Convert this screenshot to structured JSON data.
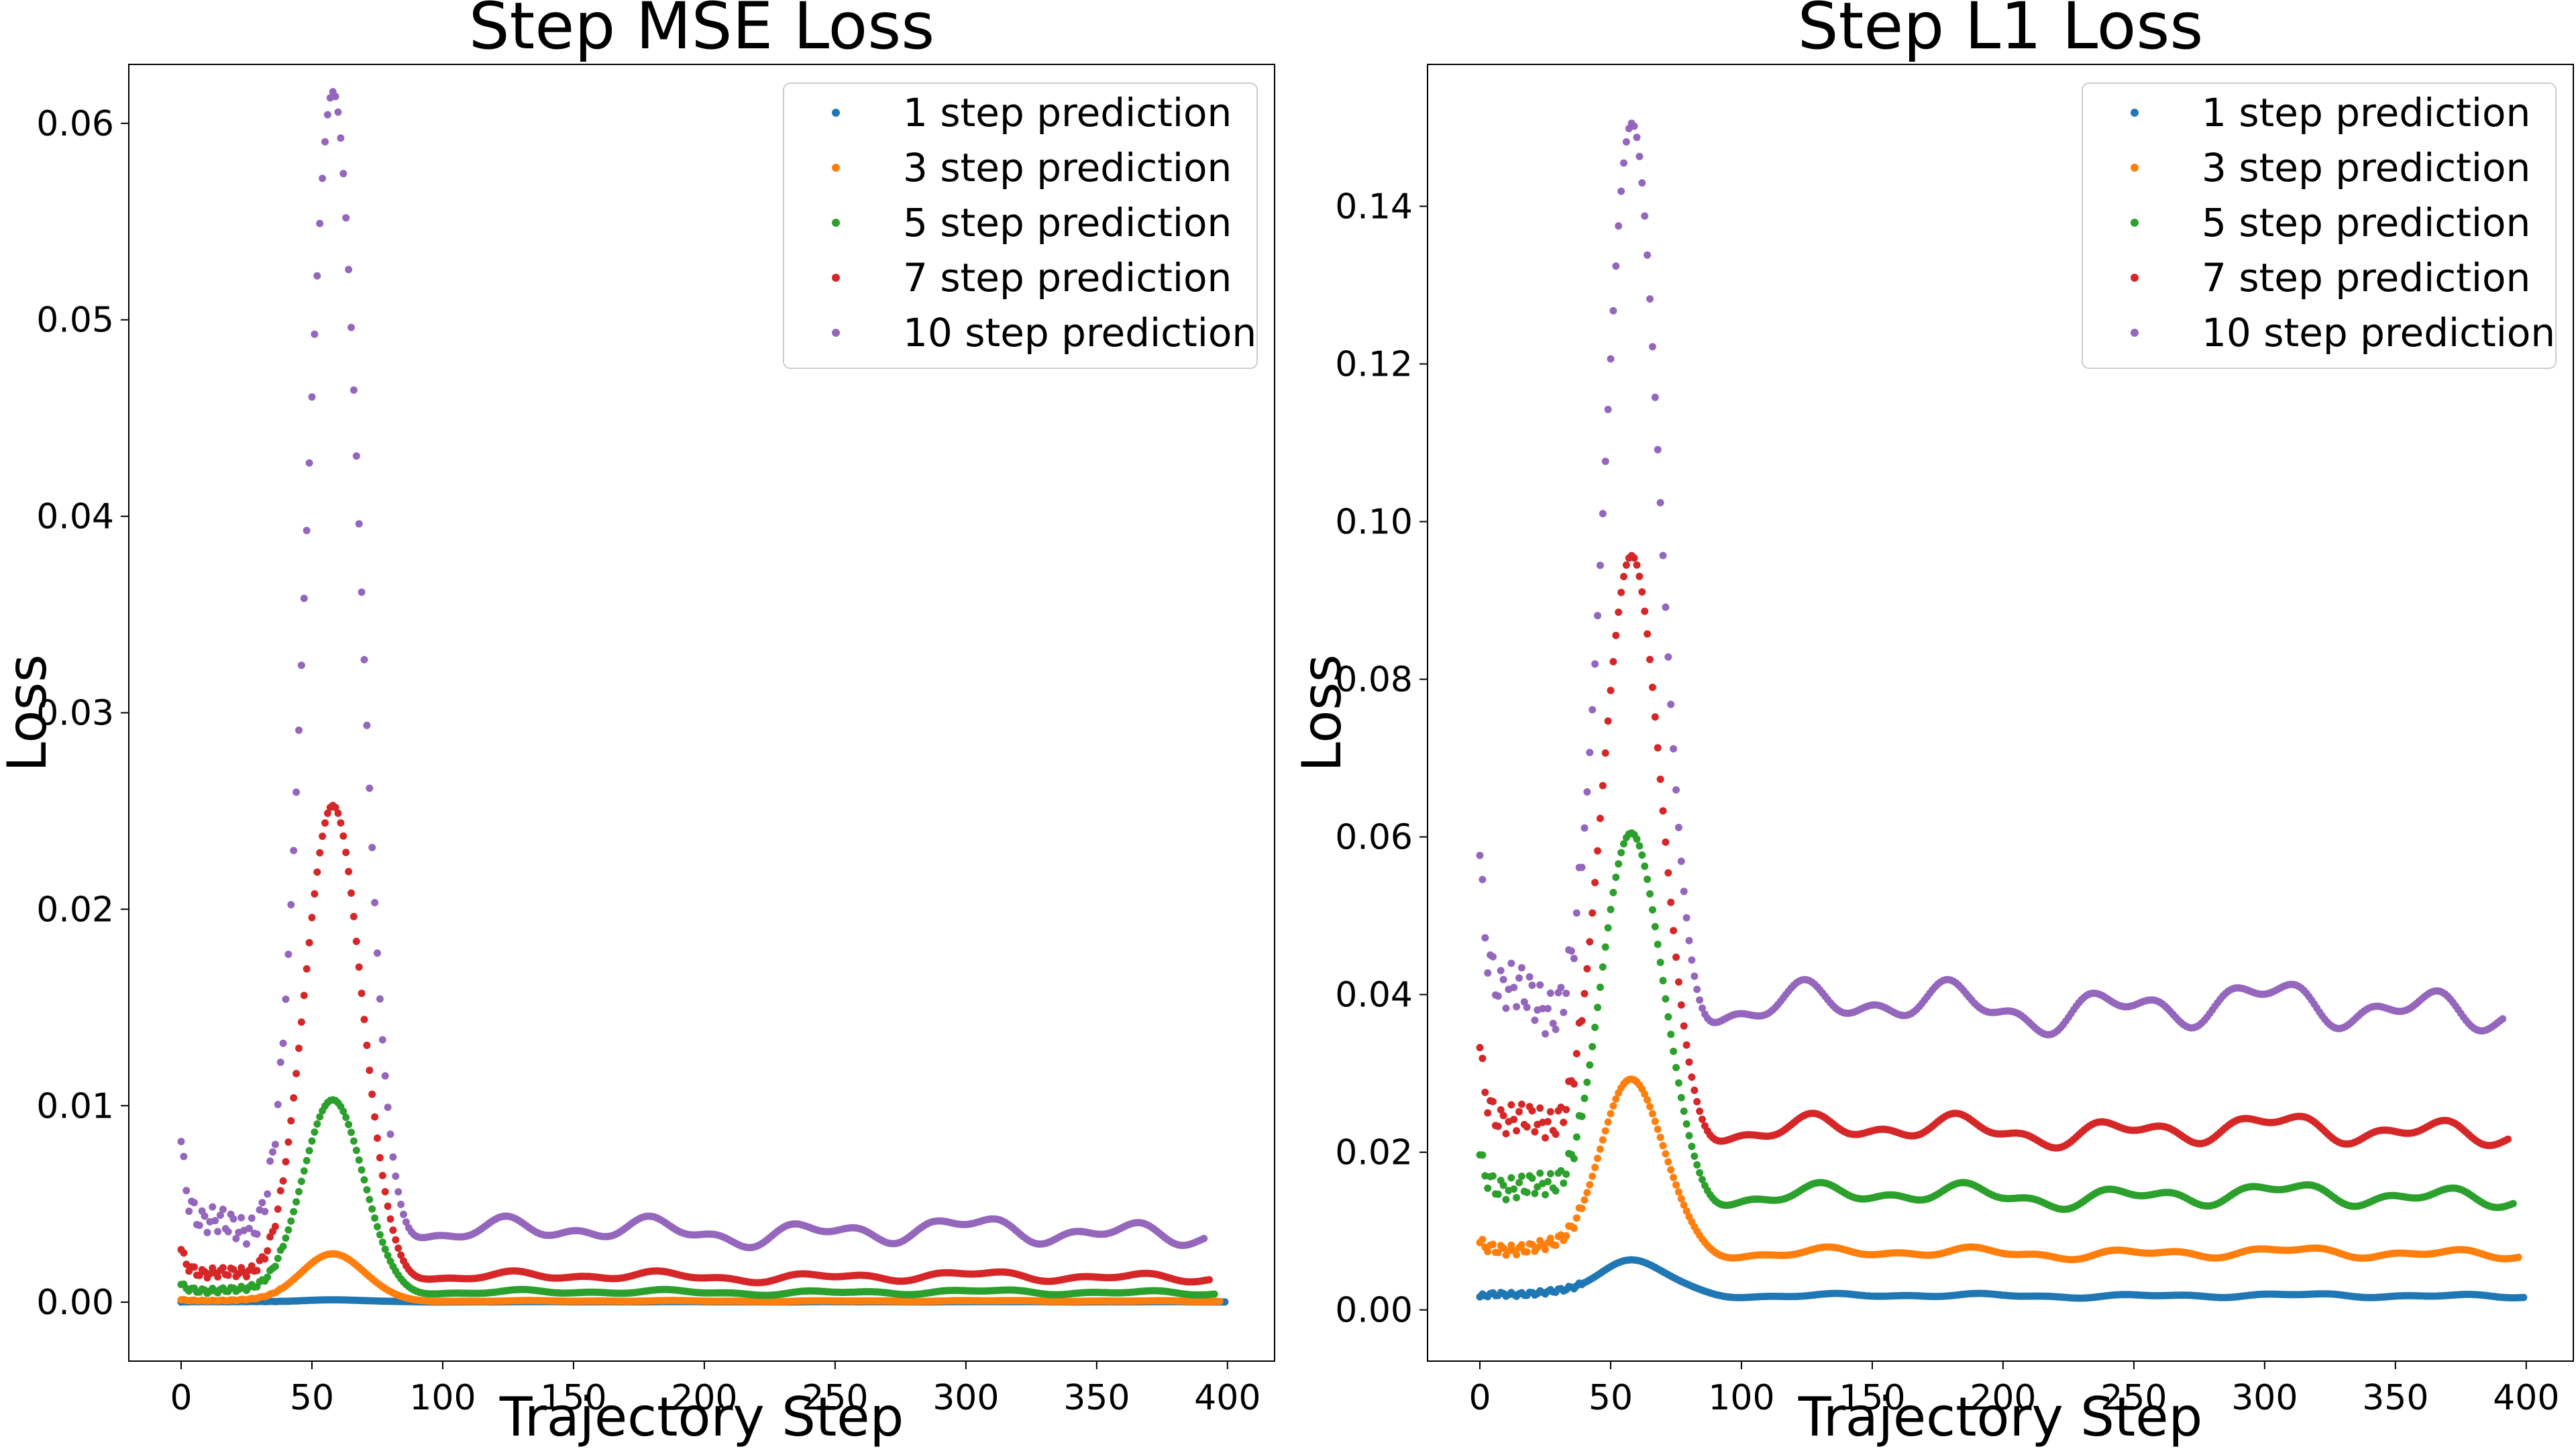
{
  "chart_data": [
    {
      "type": "scatter",
      "title": "Step MSE Loss",
      "xlabel": "Trajectory Step",
      "ylabel": "Loss",
      "xlim": [
        -20,
        418
      ],
      "ylim": [
        -0.003,
        0.063
      ],
      "xticks": [
        0,
        50,
        100,
        150,
        200,
        250,
        300,
        350,
        400
      ],
      "xtick_labels": [
        "0",
        "50",
        "100",
        "150",
        "200",
        "250",
        "300",
        "350",
        "400"
      ],
      "yticks": [
        0.0,
        0.01,
        0.02,
        0.03,
        0.04,
        0.05,
        0.06
      ],
      "ytick_labels": [
        "0.00",
        "0.01",
        "0.02",
        "0.03",
        "0.04",
        "0.05",
        "0.06"
      ],
      "legend_position": "upper right",
      "x_range": [
        0,
        399
      ],
      "series": [
        {
          "name": "1 step prediction",
          "color": "#1f77b4",
          "x_end": 399,
          "base": 2e-05,
          "amp": 1e-05,
          "peak": 0.0001,
          "width": 9,
          "start": 0.0
        },
        {
          "name": "3 step prediction",
          "color": "#ff7f0e",
          "x_end": 397,
          "base": 6e-05,
          "amp": 3e-05,
          "peak": 0.0024,
          "width": 9,
          "start": 0.0001
        },
        {
          "name": "5 step prediction",
          "color": "#2ca02c",
          "x_end": 395,
          "base": 0.0005,
          "amp": 0.00015,
          "peak": 0.0098,
          "width": 8.5,
          "start": 0.0008
        },
        {
          "name": "7 step prediction",
          "color": "#d62728",
          "x_end": 393,
          "base": 0.0013,
          "amp": 0.0003,
          "peak": 0.024,
          "width": 8,
          "start": 0.0025
        },
        {
          "name": "10 step prediction",
          "color": "#9467bd",
          "x_end": 391,
          "base": 0.0036,
          "amp": 0.0008,
          "peak": 0.058,
          "width": 7.5,
          "start": 0.0078
        }
      ]
    },
    {
      "type": "scatter",
      "title": "Step L1 Loss",
      "xlabel": "Trajectory Step",
      "ylabel": "Loss",
      "xlim": [
        -20,
        418
      ],
      "ylim": [
        -0.0065,
        0.158
      ],
      "xticks": [
        0,
        50,
        100,
        150,
        200,
        250,
        300,
        350,
        400
      ],
      "xtick_labels": [
        "0",
        "50",
        "100",
        "150",
        "200",
        "250",
        "300",
        "350",
        "400"
      ],
      "yticks": [
        0.0,
        0.02,
        0.04,
        0.06,
        0.08,
        0.1,
        0.12,
        0.14
      ],
      "ytick_labels": [
        "0.00",
        "0.02",
        "0.04",
        "0.06",
        "0.08",
        "0.10",
        "0.12",
        "0.14"
      ],
      "legend_position": "upper right",
      "x_range": [
        0,
        399
      ],
      "series": [
        {
          "name": "1 step prediction",
          "color": "#1f77b4",
          "x_end": 399,
          "base": 0.0018,
          "amp": 0.0003,
          "peak": 0.0045,
          "width": 10,
          "start": 0.0015
        },
        {
          "name": "3 step prediction",
          "color": "#ff7f0e",
          "x_end": 397,
          "base": 0.0072,
          "amp": 0.0008,
          "peak": 0.022,
          "width": 9,
          "start": 0.008
        },
        {
          "name": "5 step prediction",
          "color": "#2ca02c",
          "x_end": 395,
          "base": 0.0145,
          "amp": 0.0017,
          "peak": 0.046,
          "width": 8.5,
          "start": 0.0185
        },
        {
          "name": "7 step prediction",
          "color": "#d62728",
          "x_end": 393,
          "base": 0.0228,
          "amp": 0.0022,
          "peak": 0.073,
          "width": 8,
          "start": 0.032
        },
        {
          "name": "10 step prediction",
          "color": "#9467bd",
          "x_end": 391,
          "base": 0.0385,
          "amp": 0.0035,
          "peak": 0.112,
          "width": 7.5,
          "start": 0.056
        }
      ]
    }
  ]
}
